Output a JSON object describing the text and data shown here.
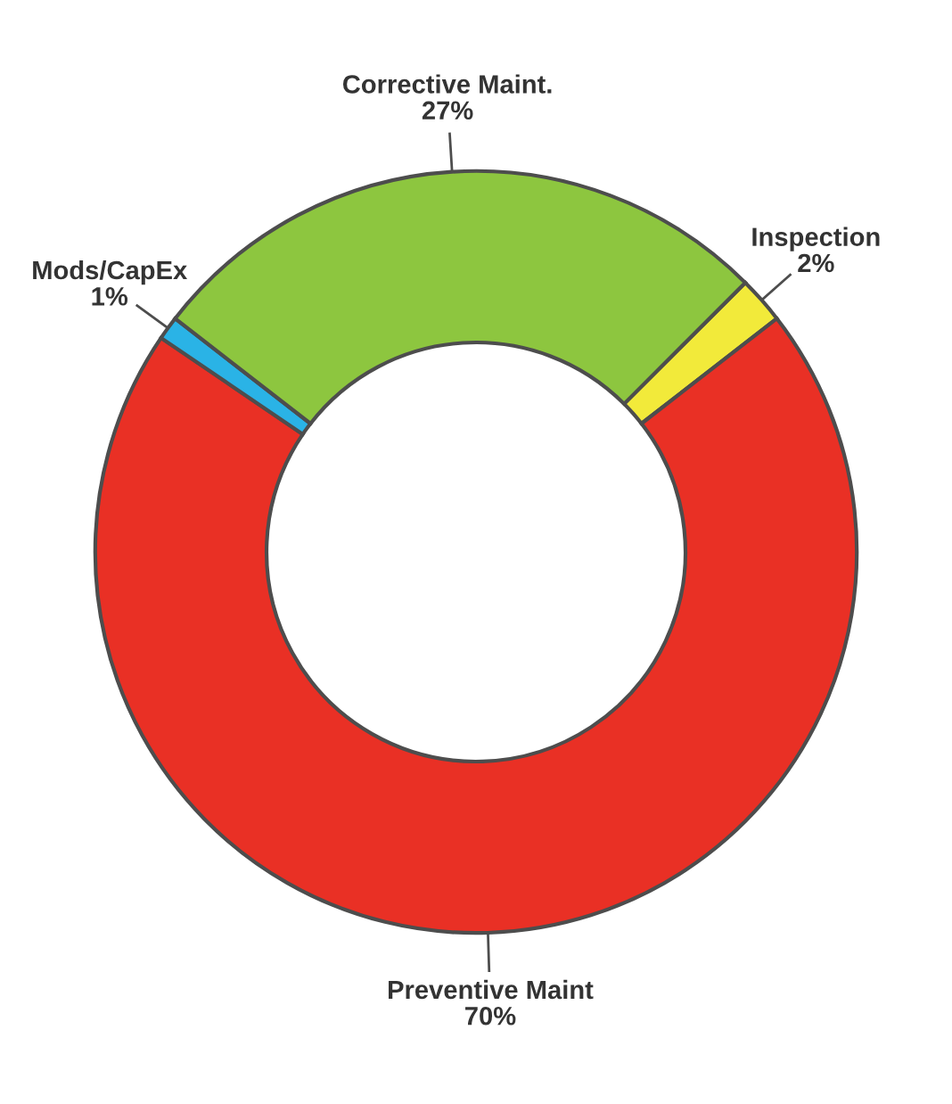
{
  "chart_data": {
    "type": "donut",
    "categories": [
      "Inspection",
      "Preventive Maint",
      "Mods/CapEx",
      "Corrective Maint."
    ],
    "values": [
      2,
      70,
      1,
      27
    ],
    "colors": [
      "#f2ea3a",
      "#e93025",
      "#2ab3e6",
      "#8dc63f"
    ],
    "value_labels": [
      "2%",
      "70%",
      "1%",
      "27%"
    ],
    "legend": false
  }
}
